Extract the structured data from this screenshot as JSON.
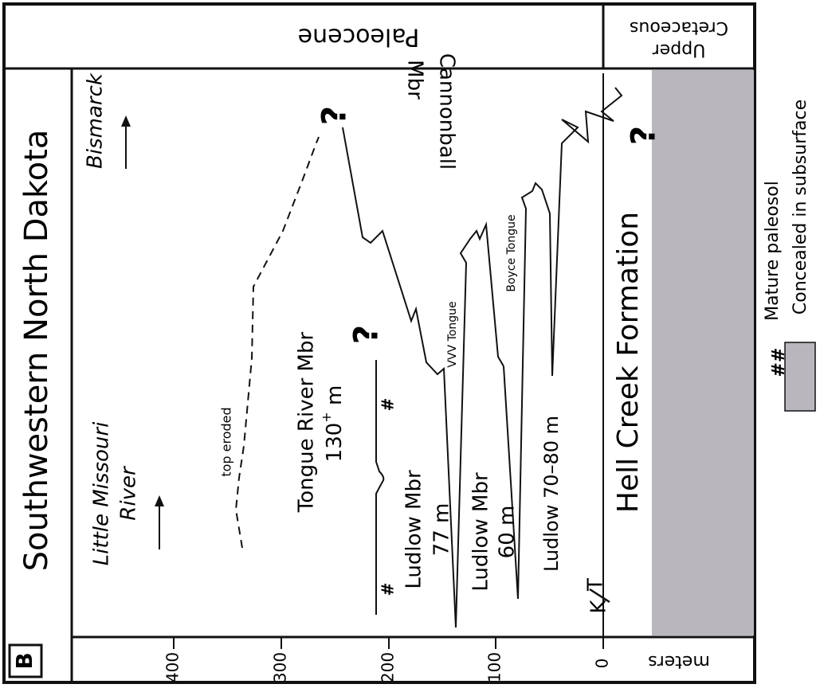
{
  "panel_label": "B",
  "region_title": "Southwestern North Dakota",
  "time_units": {
    "paleocene": "Paleocene",
    "upper_cretaceous_line1": "Upper",
    "upper_cretaceous_line2": "Cretaceous"
  },
  "axis": {
    "label": "meters",
    "ticks": [
      "0",
      "100",
      "200",
      "300",
      "400"
    ]
  },
  "localities": {
    "little_missouri_line1": "Little Missouri",
    "little_missouri_line2": "River",
    "bismarck": "Bismarck"
  },
  "units": {
    "top_eroded": "top eroded",
    "tongue_river_line1": "Tongue River Mbr",
    "tongue_river_line2_base": "130",
    "tongue_river_line2_sup": "+",
    "tongue_river_line2_unit": " m",
    "ludlow77_line1": "Ludlow Mbr",
    "ludlow77_line2": "77 m",
    "ludlow60_line1": "Ludlow Mbr",
    "ludlow60_line2": "60 m",
    "ludlow7080": "Ludlow 70–80 m",
    "vvv_tongue": "VVV Tongue",
    "boyce_tongue": "Boyce Tongue",
    "cannonball_line1": "Cannonball",
    "cannonball_line2": "Mbr",
    "hell_creek": "Hell Creek Formation",
    "kt_k": "K",
    "kt_t": "T",
    "question_mark": "?",
    "paleosol_mark": "#"
  },
  "legend": {
    "paleosol_symbol": "##",
    "paleosol_label": "Mature paleosol",
    "concealed_label": "Concealed in subsurface"
  },
  "colors": {
    "line": "#111111",
    "concealed_fill": "#b9b6bd",
    "background": "#ffffff"
  }
}
